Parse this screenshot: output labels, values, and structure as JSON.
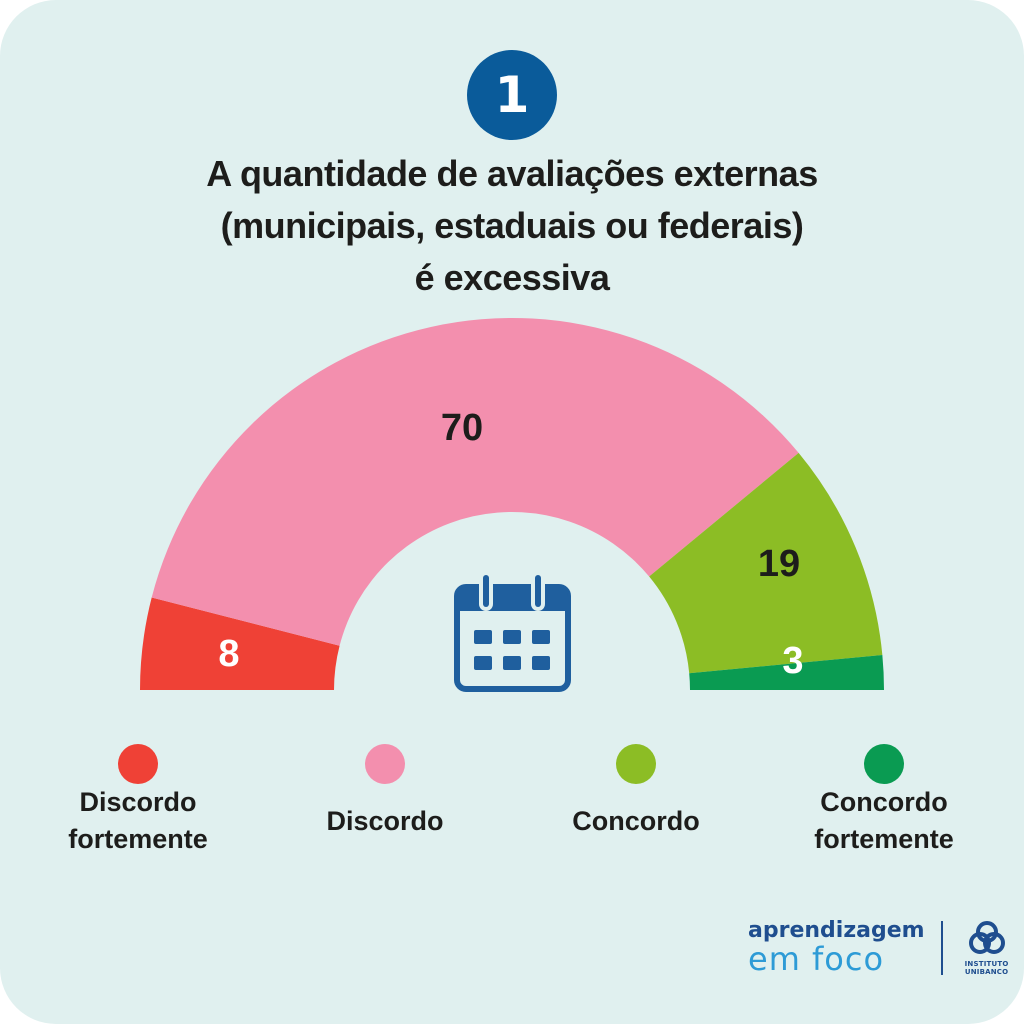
{
  "badge": {
    "number": "1"
  },
  "title": {
    "line1": "A quantidade de avaliações externas",
    "line2": "(municipais, estaduais ou federais)",
    "line3": "é excessiva"
  },
  "chart_data": {
    "type": "pie",
    "variant": "semicircle-donut",
    "categories": [
      "Discordo fortemente",
      "Discordo",
      "Concordo",
      "Concordo fortemente"
    ],
    "values": [
      8,
      70,
      19,
      3
    ],
    "colors": [
      "#ef4136",
      "#f38fae",
      "#8cbd25",
      "#0a9b52"
    ],
    "label_colors": [
      "#ffffff",
      "#1d1d1b",
      "#1d1d1b",
      "#ffffff"
    ],
    "center_icon": "calendar-icon",
    "legend_position": "bottom"
  },
  "legend": [
    {
      "line1": "Discordo",
      "line2": "fortemente",
      "color": "#ef4136"
    },
    {
      "line1": "Discordo",
      "line2": "",
      "color": "#f38fae"
    },
    {
      "line1": "Concordo",
      "line2": "",
      "color": "#8cbd25"
    },
    {
      "line1": "Concordo",
      "line2": "fortemente",
      "color": "#0a9b52"
    }
  ],
  "brand": {
    "line1": "aprendizagem",
    "line2": "em foco",
    "logo_text1": "INSTITUTO",
    "logo_text2": "UNIBANCO",
    "logo_icon": "instituto-unibanco-logo-icon"
  }
}
